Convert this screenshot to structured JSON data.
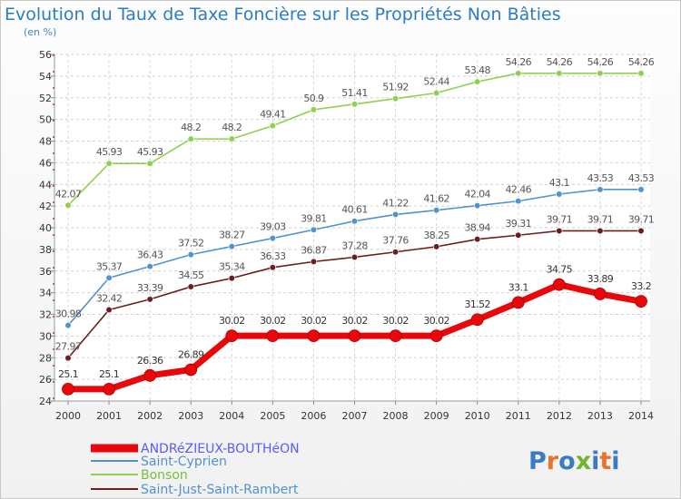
{
  "title": "Evolution du Taux de Taxe Foncière sur les Propriétés Non Bâties",
  "unit": "(en %)",
  "logo": {
    "text": "Proxiti",
    "letters": [
      "P",
      "r",
      "o",
      "x",
      "i",
      "t",
      "i"
    ],
    "colors": [
      "#3a7bc8",
      "#e8742c",
      "#3a7bc8",
      "#6fb52f",
      "#3a7bc8",
      "#e8742c",
      "#3a7bc8"
    ]
  },
  "chart_data": {
    "type": "line",
    "x": [
      "2000",
      "2001",
      "2002",
      "2003",
      "2004",
      "2005",
      "2006",
      "2007",
      "2008",
      "2009",
      "2010",
      "2011",
      "2012",
      "2013",
      "2014"
    ],
    "ylim": [
      24,
      56
    ],
    "yticks": [
      24,
      26,
      28,
      30,
      32,
      34,
      36,
      38,
      40,
      42,
      44,
      46,
      48,
      50,
      52,
      54,
      56
    ],
    "grid": true,
    "legend_position": "bottom-left",
    "series": [
      {
        "name": "ANDRéZIEUX-BOUTHéON",
        "color": "#e8070b",
        "text_color": "#5a5aff",
        "bold": true,
        "values": [
          25.1,
          25.1,
          26.36,
          26.89,
          30.02,
          30.02,
          30.02,
          30.02,
          30.02,
          30.02,
          31.52,
          33.1,
          34.75,
          33.89,
          33.2
        ],
        "labels": [
          "25.1",
          "25.1",
          "26.36",
          "26.89",
          "30.02",
          "30.02",
          "30.02",
          "30.02",
          "30.02",
          "30.02",
          "31.52",
          "33.1",
          "34.75",
          "33.89",
          "33.2"
        ]
      },
      {
        "name": "Saint-Cyprien",
        "color": "#4f93cf",
        "text_color": "#4f93cf",
        "bold": false,
        "values": [
          30.98,
          35.37,
          36.43,
          37.52,
          38.27,
          39.03,
          39.81,
          40.61,
          41.22,
          41.62,
          42.04,
          42.46,
          43.1,
          43.53,
          43.53
        ],
        "labels": [
          "30.98",
          "35.37",
          "36.43",
          "37.52",
          "38.27",
          "39.03",
          "39.81",
          "40.61",
          "41.22",
          "41.62",
          "42.04",
          "42.46",
          "43.1",
          "43.53",
          "43.53"
        ]
      },
      {
        "name": "Bonson",
        "color": "#8dd14f",
        "text_color": "#76c040",
        "bold": false,
        "values": [
          42.07,
          45.93,
          45.93,
          48.2,
          48.2,
          49.41,
          50.9,
          51.41,
          51.92,
          52.44,
          53.48,
          54.26,
          54.26,
          54.26,
          54.26
        ],
        "labels": [
          "42.07",
          "45.93",
          "45.93",
          "48.2",
          "48.2",
          "49.41",
          "50.9",
          "51.41",
          "51.92",
          "52.44",
          "53.48",
          "54.26",
          "54.26",
          "54.26",
          "54.26"
        ]
      },
      {
        "name": "Saint-Just-Saint-Rambert",
        "color": "#6a1e1e",
        "text_color": "#4f93cf",
        "bold": false,
        "values": [
          27.97,
          32.42,
          33.39,
          34.55,
          35.34,
          36.33,
          36.87,
          37.28,
          37.76,
          38.25,
          38.94,
          39.31,
          39.71,
          39.71,
          39.71
        ],
        "labels": [
          "27.97",
          "32.42",
          "33.39",
          "34.55",
          "35.34",
          "36.33",
          "36.87",
          "37.28",
          "37.76",
          "38.25",
          "38.94",
          "39.31",
          "39.71",
          "39.71",
          "39.71"
        ]
      }
    ]
  }
}
